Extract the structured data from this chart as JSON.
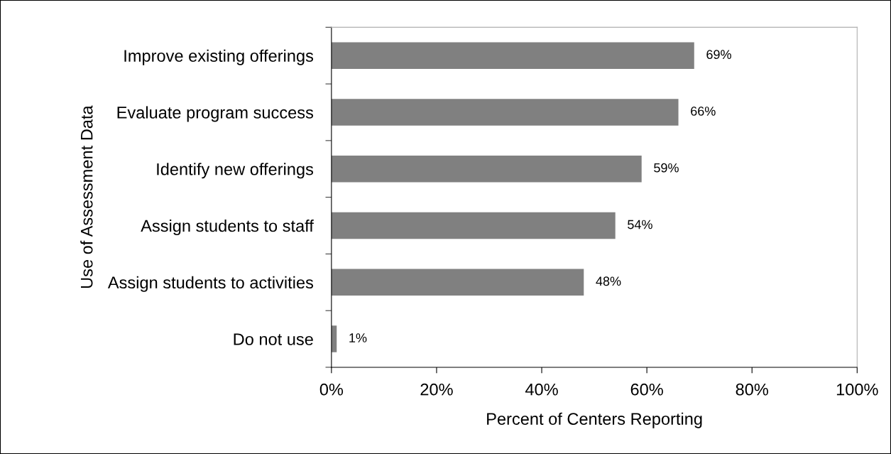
{
  "chart_data": {
    "type": "bar",
    "orientation": "horizontal",
    "xlabel": "Percent of Centers Reporting",
    "ylabel": "Use of Assessment Data",
    "categories": [
      "Improve existing offerings",
      "Evaluate program success",
      "Identify new offerings",
      "Assign students to staff",
      "Assign students to activities",
      "Do not use"
    ],
    "values": [
      69,
      66,
      59,
      54,
      48,
      1
    ],
    "value_labels": [
      "69%",
      "66%",
      "59%",
      "54%",
      "48%",
      "1%"
    ],
    "color": "#808080",
    "xlim": [
      0,
      100
    ],
    "xticks": [
      {
        "value": 0,
        "label": "0%"
      },
      {
        "value": 20,
        "label": "20%"
      },
      {
        "value": 40,
        "label": "40%"
      },
      {
        "value": 60,
        "label": "60%"
      },
      {
        "value": 80,
        "label": "80%"
      },
      {
        "value": 100,
        "label": "100%"
      }
    ],
    "grid": false,
    "legend": false
  }
}
